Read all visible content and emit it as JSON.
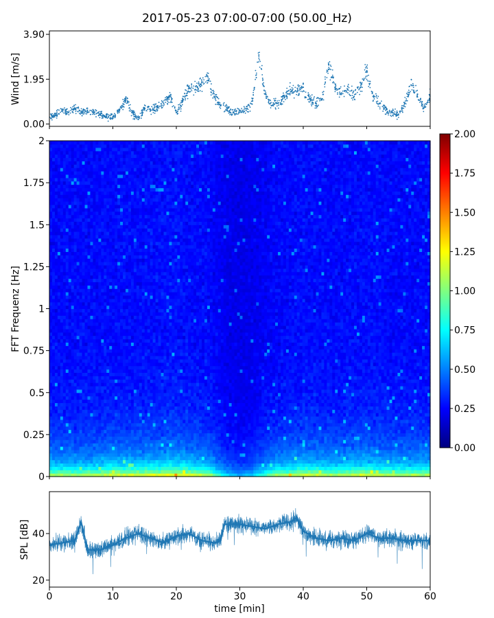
{
  "figure": {
    "title": "2017-05-23 07:00-07:00 (50.00_Hz)"
  },
  "chart_data": [
    {
      "type": "scatter",
      "panel": "wind",
      "ylabel": "Wind [m/s]",
      "xlim": [
        0,
        60
      ],
      "ylim": [
        -0.1,
        4.05
      ],
      "yticks": [
        0.0,
        1.95,
        3.9
      ],
      "ytick_labels": [
        "0.00",
        "1.95",
        "3.90"
      ],
      "color": "#1f77b4",
      "x": [
        0,
        1,
        2,
        3,
        4,
        5,
        6,
        7,
        8,
        9,
        10,
        11,
        12,
        13,
        14,
        15,
        16,
        17,
        18,
        19,
        20,
        21,
        22,
        23,
        24,
        25,
        26,
        27,
        28,
        29,
        30,
        31,
        32,
        33,
        34,
        35,
        36,
        37,
        38,
        39,
        40,
        41,
        42,
        43,
        44,
        45,
        46,
        47,
        48,
        49,
        50,
        51,
        52,
        53,
        54,
        55,
        56,
        57,
        58,
        59,
        60
      ],
      "y": [
        0.3,
        0.4,
        0.6,
        0.5,
        0.7,
        0.5,
        0.6,
        0.5,
        0.4,
        0.3,
        0.3,
        0.6,
        1.1,
        0.5,
        0.2,
        0.7,
        0.6,
        0.7,
        0.9,
        1.2,
        0.5,
        1.0,
        1.6,
        1.5,
        1.8,
        1.9,
        1.2,
        0.8,
        0.7,
        0.5,
        0.6,
        0.6,
        1.0,
        3.0,
        1.3,
        0.8,
        0.9,
        1.2,
        1.5,
        1.4,
        1.6,
        1.1,
        0.9,
        1.1,
        2.6,
        1.6,
        1.3,
        1.5,
        1.2,
        1.6,
        2.3,
        1.2,
        0.9,
        0.6,
        0.5,
        0.4,
        0.9,
        1.7,
        1.3,
        0.7,
        1.2
      ]
    },
    {
      "type": "heatmap",
      "panel": "spectrogram",
      "ylabel": "FFT Frequenz [Hz]",
      "xlim": [
        0,
        60
      ],
      "ylim": [
        0,
        2
      ],
      "yticks": [
        0,
        0.25,
        0.5,
        0.75,
        1,
        1.25,
        1.5,
        1.75,
        2
      ],
      "ytick_labels": [
        "0",
        "0.25",
        "0.5",
        "0.75",
        "1",
        "1.25",
        "1.5",
        "1.75",
        "2"
      ],
      "colormap": "jet",
      "clim": [
        0.0,
        2.0
      ],
      "colorbar_ticks": [
        "0.00",
        "0.25",
        "0.50",
        "0.75",
        "1.00",
        "1.25",
        "1.50",
        "1.75",
        "2.00"
      ],
      "time_profile": {
        "x": [
          0,
          5,
          10,
          15,
          20,
          25,
          28,
          30,
          32,
          35,
          40,
          45,
          50,
          55,
          60
        ],
        "level": [
          0.55,
          0.55,
          0.6,
          0.6,
          0.65,
          0.55,
          0.3,
          0.25,
          0.3,
          0.5,
          0.6,
          0.55,
          0.6,
          0.55,
          0.55
        ]
      }
    },
    {
      "type": "line",
      "panel": "spl",
      "ylabel": "SPL [dB]",
      "xlabel": "time [min]",
      "xlim": [
        0,
        60
      ],
      "ylim": [
        17,
        58
      ],
      "yticks": [
        20,
        40
      ],
      "ytick_labels": [
        "20",
        "40"
      ],
      "xticks": [
        0,
        10,
        20,
        30,
        40,
        50,
        60
      ],
      "xtick_labels": [
        "0",
        "10",
        "20",
        "30",
        "40",
        "50",
        "60"
      ],
      "color": "#1f77b4",
      "x": [
        0,
        2,
        4,
        5,
        6,
        8,
        10,
        12,
        14,
        16,
        18,
        20,
        22,
        24,
        26,
        27,
        27.5,
        30,
        32,
        34,
        36,
        38,
        39,
        40,
        42,
        44,
        46,
        48,
        50,
        52,
        54,
        56,
        58,
        60
      ],
      "y": [
        35,
        36,
        37,
        45,
        33,
        33,
        35,
        38,
        40,
        38,
        36,
        39,
        40,
        37,
        36,
        37,
        44,
        44,
        43,
        42,
        44,
        45,
        47,
        41,
        38,
        37,
        38,
        37,
        40,
        38,
        38,
        37,
        37,
        37
      ]
    }
  ]
}
